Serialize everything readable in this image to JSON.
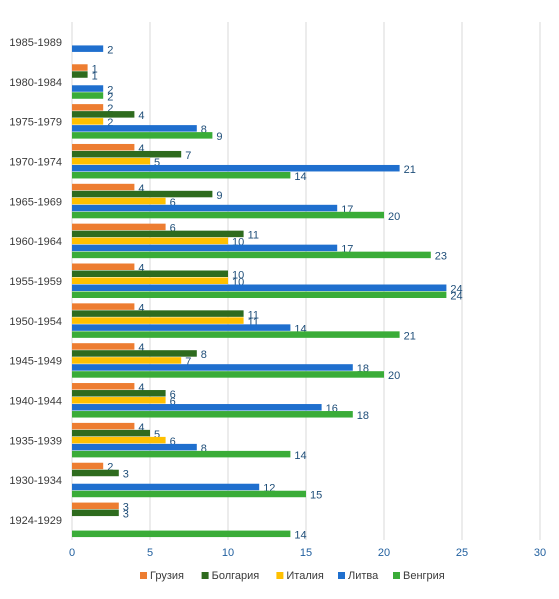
{
  "chart_data": {
    "type": "bar",
    "orientation": "horizontal",
    "categories": [
      "1924-1929",
      "1930-1934",
      "1935-1939",
      "1940-1944",
      "1945-1949",
      "1950-1954",
      "1955-1959",
      "1960-1964",
      "1965-1969",
      "1970-1974",
      "1975-1979",
      "1980-1984",
      "1985-1989"
    ],
    "series": [
      {
        "name": "Грузия",
        "color": "#ed7d31",
        "values": [
          3,
          2,
          4,
          4,
          4,
          4,
          4,
          6,
          4,
          4,
          2,
          1,
          null
        ]
      },
      {
        "name": "Болгария",
        "color": "#2e6b1e",
        "values": [
          3,
          3,
          5,
          6,
          8,
          11,
          10,
          11,
          9,
          7,
          4,
          1,
          null
        ]
      },
      {
        "name": "Италия",
        "color": "#ffc000",
        "values": [
          null,
          null,
          6,
          6,
          7,
          11,
          10,
          10,
          6,
          5,
          2,
          null,
          null
        ]
      },
      {
        "name": "Литва",
        "color": "#1f6fce",
        "values": [
          null,
          12,
          8,
          16,
          18,
          14,
          24,
          17,
          17,
          21,
          8,
          2,
          2
        ]
      },
      {
        "name": "Венгрия",
        "color": "#3aac38",
        "values": [
          14,
          15,
          14,
          18,
          20,
          21,
          24,
          23,
          20,
          14,
          9,
          2,
          null
        ]
      }
    ],
    "xlim": [
      0,
      30
    ],
    "xticks": [
      0,
      5,
      10,
      15,
      20,
      25,
      30
    ],
    "grid": true,
    "legend": "bottom",
    "data_labels": true
  }
}
